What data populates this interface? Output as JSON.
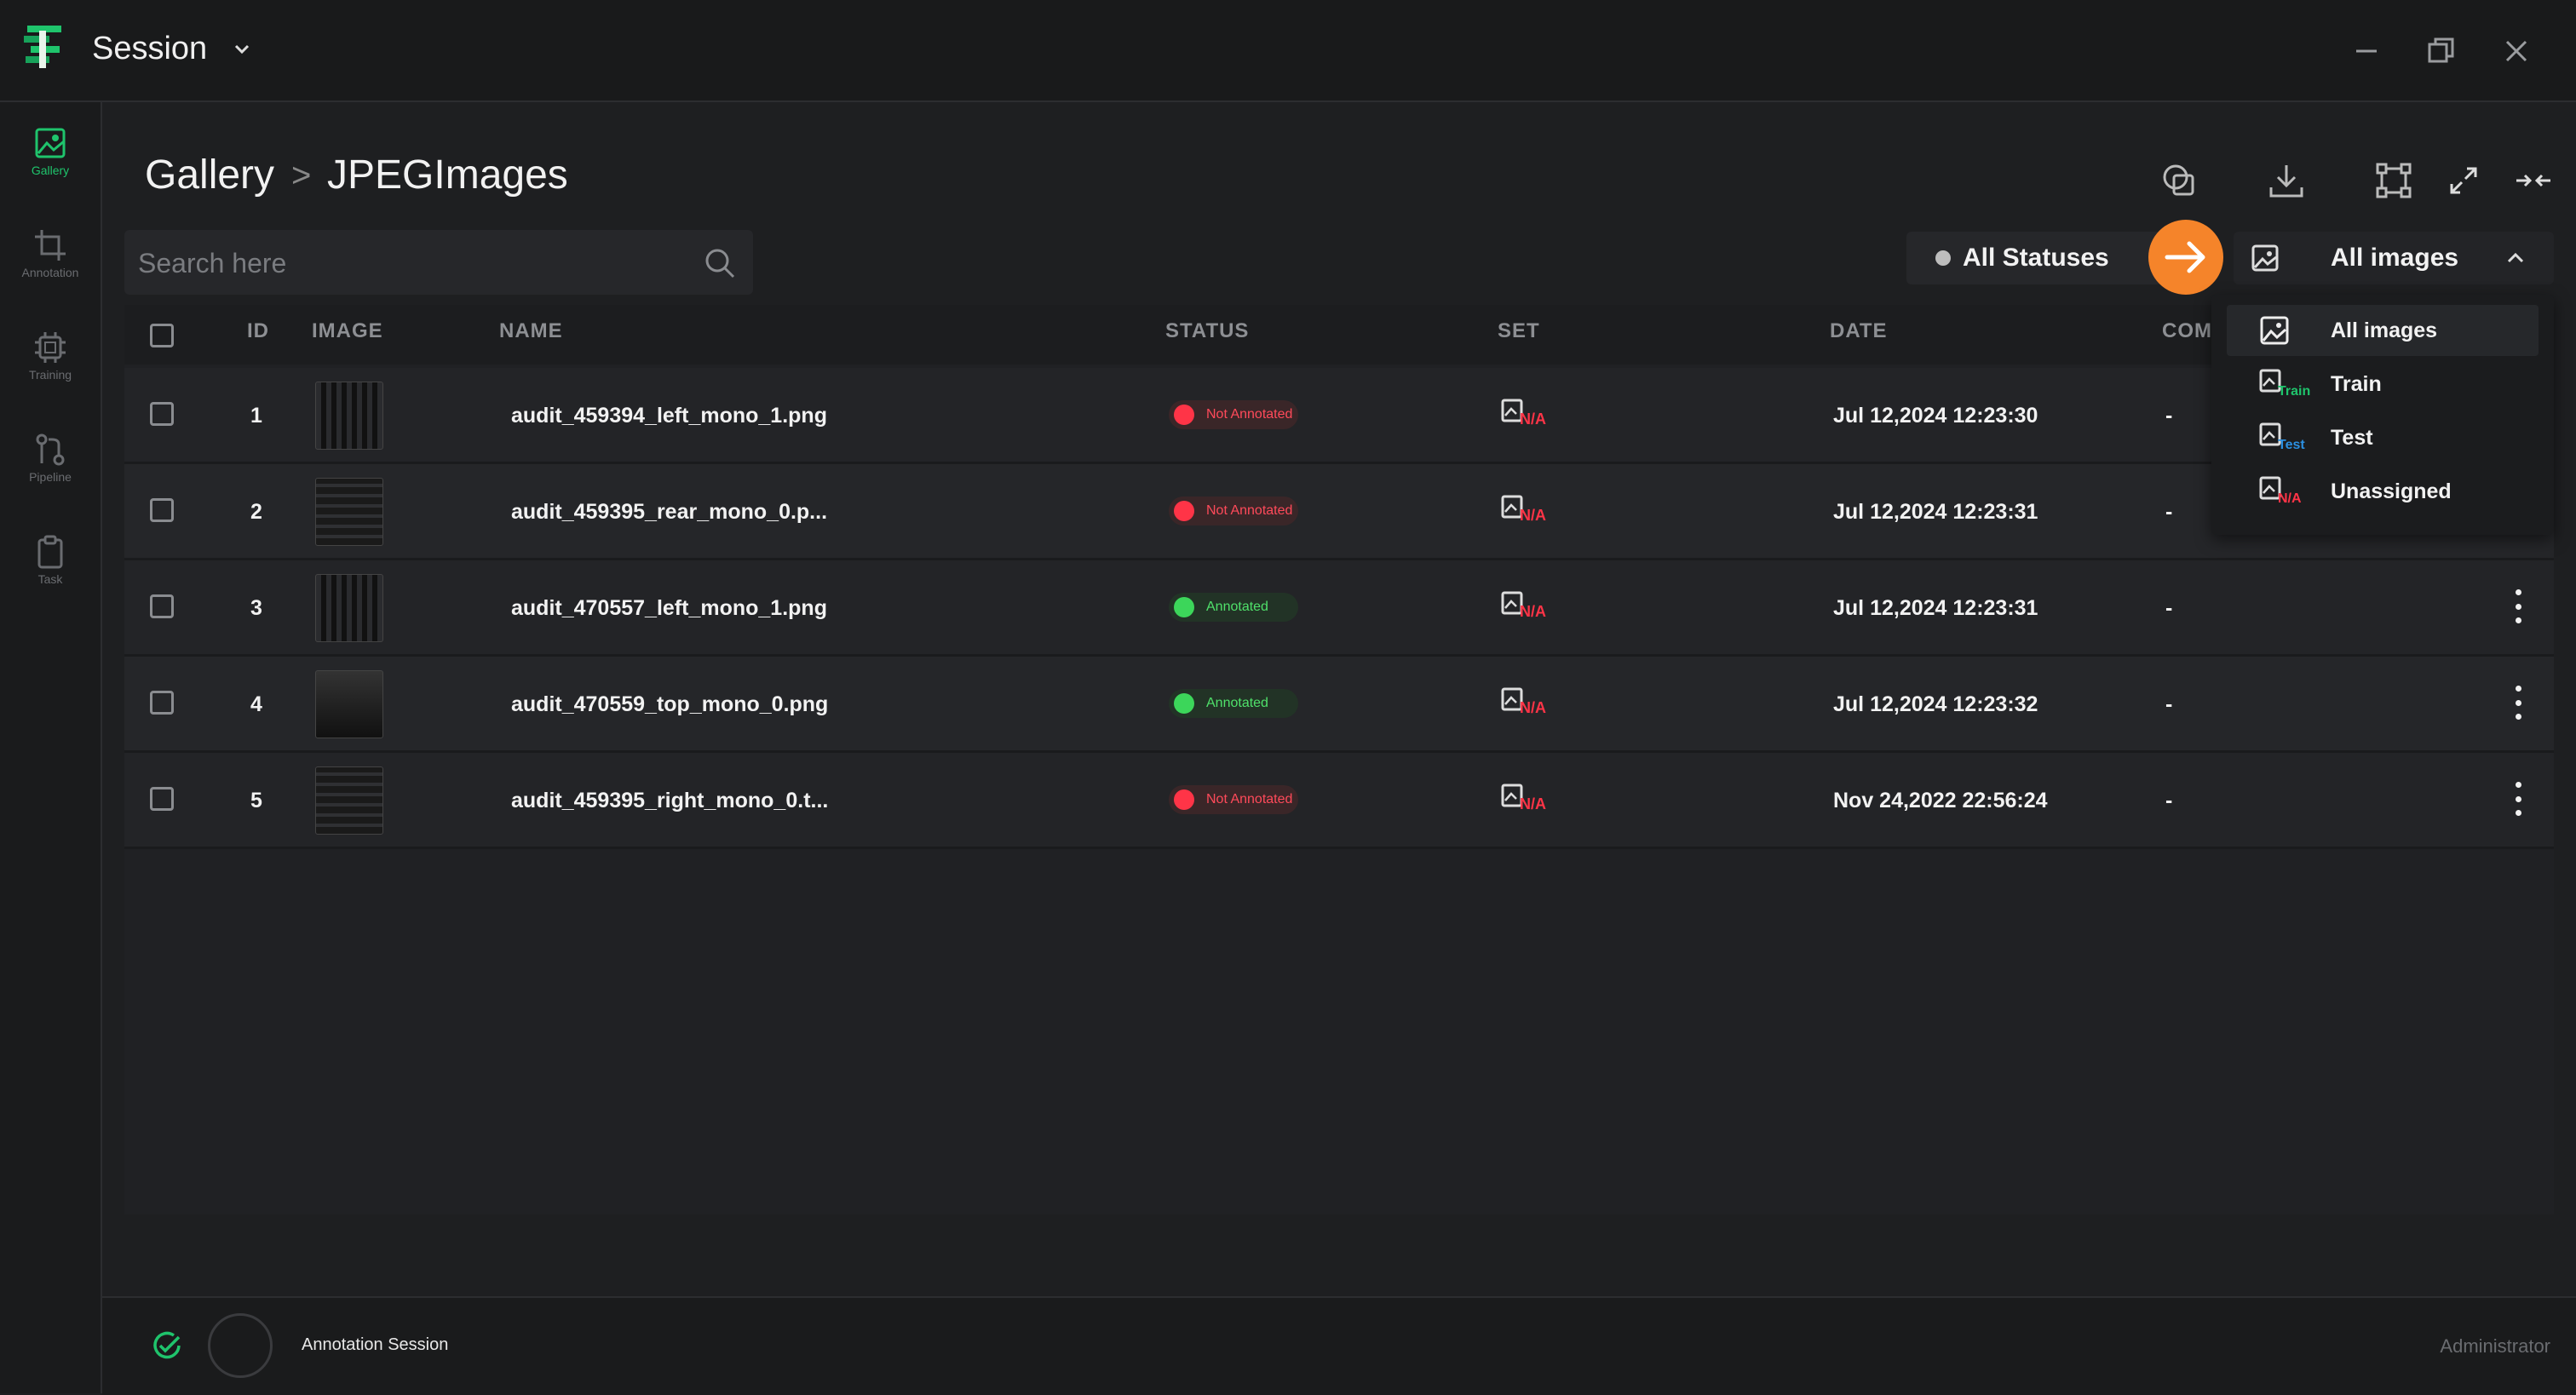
{
  "app": {
    "title": "Session"
  },
  "sidebar": {
    "items": [
      {
        "label": "Gallery",
        "icon": "image-icon",
        "active": true
      },
      {
        "label": "Annotation",
        "icon": "crop-icon",
        "active": false
      },
      {
        "label": "Training",
        "icon": "chip-icon",
        "active": false
      },
      {
        "label": "Pipeline",
        "icon": "pipeline-icon",
        "active": false
      },
      {
        "label": "Task",
        "icon": "clipboard-icon",
        "active": false
      }
    ]
  },
  "breadcrumb": {
    "root": "Gallery",
    "separator": ">",
    "current": "JPEGImages"
  },
  "search": {
    "placeholder": "Search here",
    "value": ""
  },
  "filters": {
    "status": "All Statuses",
    "images": "All images"
  },
  "table": {
    "headers": {
      "id": "ID",
      "image": "IMAGE",
      "name": "NAME",
      "status": "STATUS",
      "set": "SET",
      "date": "DATE",
      "comment": "COM"
    },
    "rows": [
      {
        "id": "1",
        "name": "audit_459394_left_mono_1.png",
        "status": "Not Annotated",
        "set": "N/A",
        "date": "Jul 12,2024 12:23:30",
        "comment": "-"
      },
      {
        "id": "2",
        "name": "audit_459395_rear_mono_0.p...",
        "status": "Not Annotated",
        "set": "N/A",
        "date": "Jul 12,2024 12:23:31",
        "comment": "-"
      },
      {
        "id": "3",
        "name": "audit_470557_left_mono_1.png",
        "status": "Annotated",
        "set": "N/A",
        "date": "Jul 12,2024 12:23:31",
        "comment": "-"
      },
      {
        "id": "4",
        "name": "audit_470559_top_mono_0.png",
        "status": "Annotated",
        "set": "N/A",
        "date": "Jul 12,2024 12:23:32",
        "comment": "-"
      },
      {
        "id": "5",
        "name": "audit_459395_right_mono_0.t...",
        "status": "Not Annotated",
        "set": "N/A",
        "date": "Nov 24,2022 22:56:24",
        "comment": "-"
      }
    ]
  },
  "dropdown": {
    "items": [
      {
        "label": "All images",
        "tag": ""
      },
      {
        "label": "Train",
        "tag": "Train"
      },
      {
        "label": "Test",
        "tag": "Test"
      },
      {
        "label": "Unassigned",
        "tag": "N/A"
      }
    ]
  },
  "footer": {
    "session": "Annotation Session",
    "user": "Administrator"
  },
  "colors": {
    "accent": "#1fc46c",
    "orange": "#f5842a",
    "not_annotated": "#ff3447",
    "annotated": "#3cd65a",
    "train": "#1fc46c",
    "test": "#2b8fe0"
  }
}
